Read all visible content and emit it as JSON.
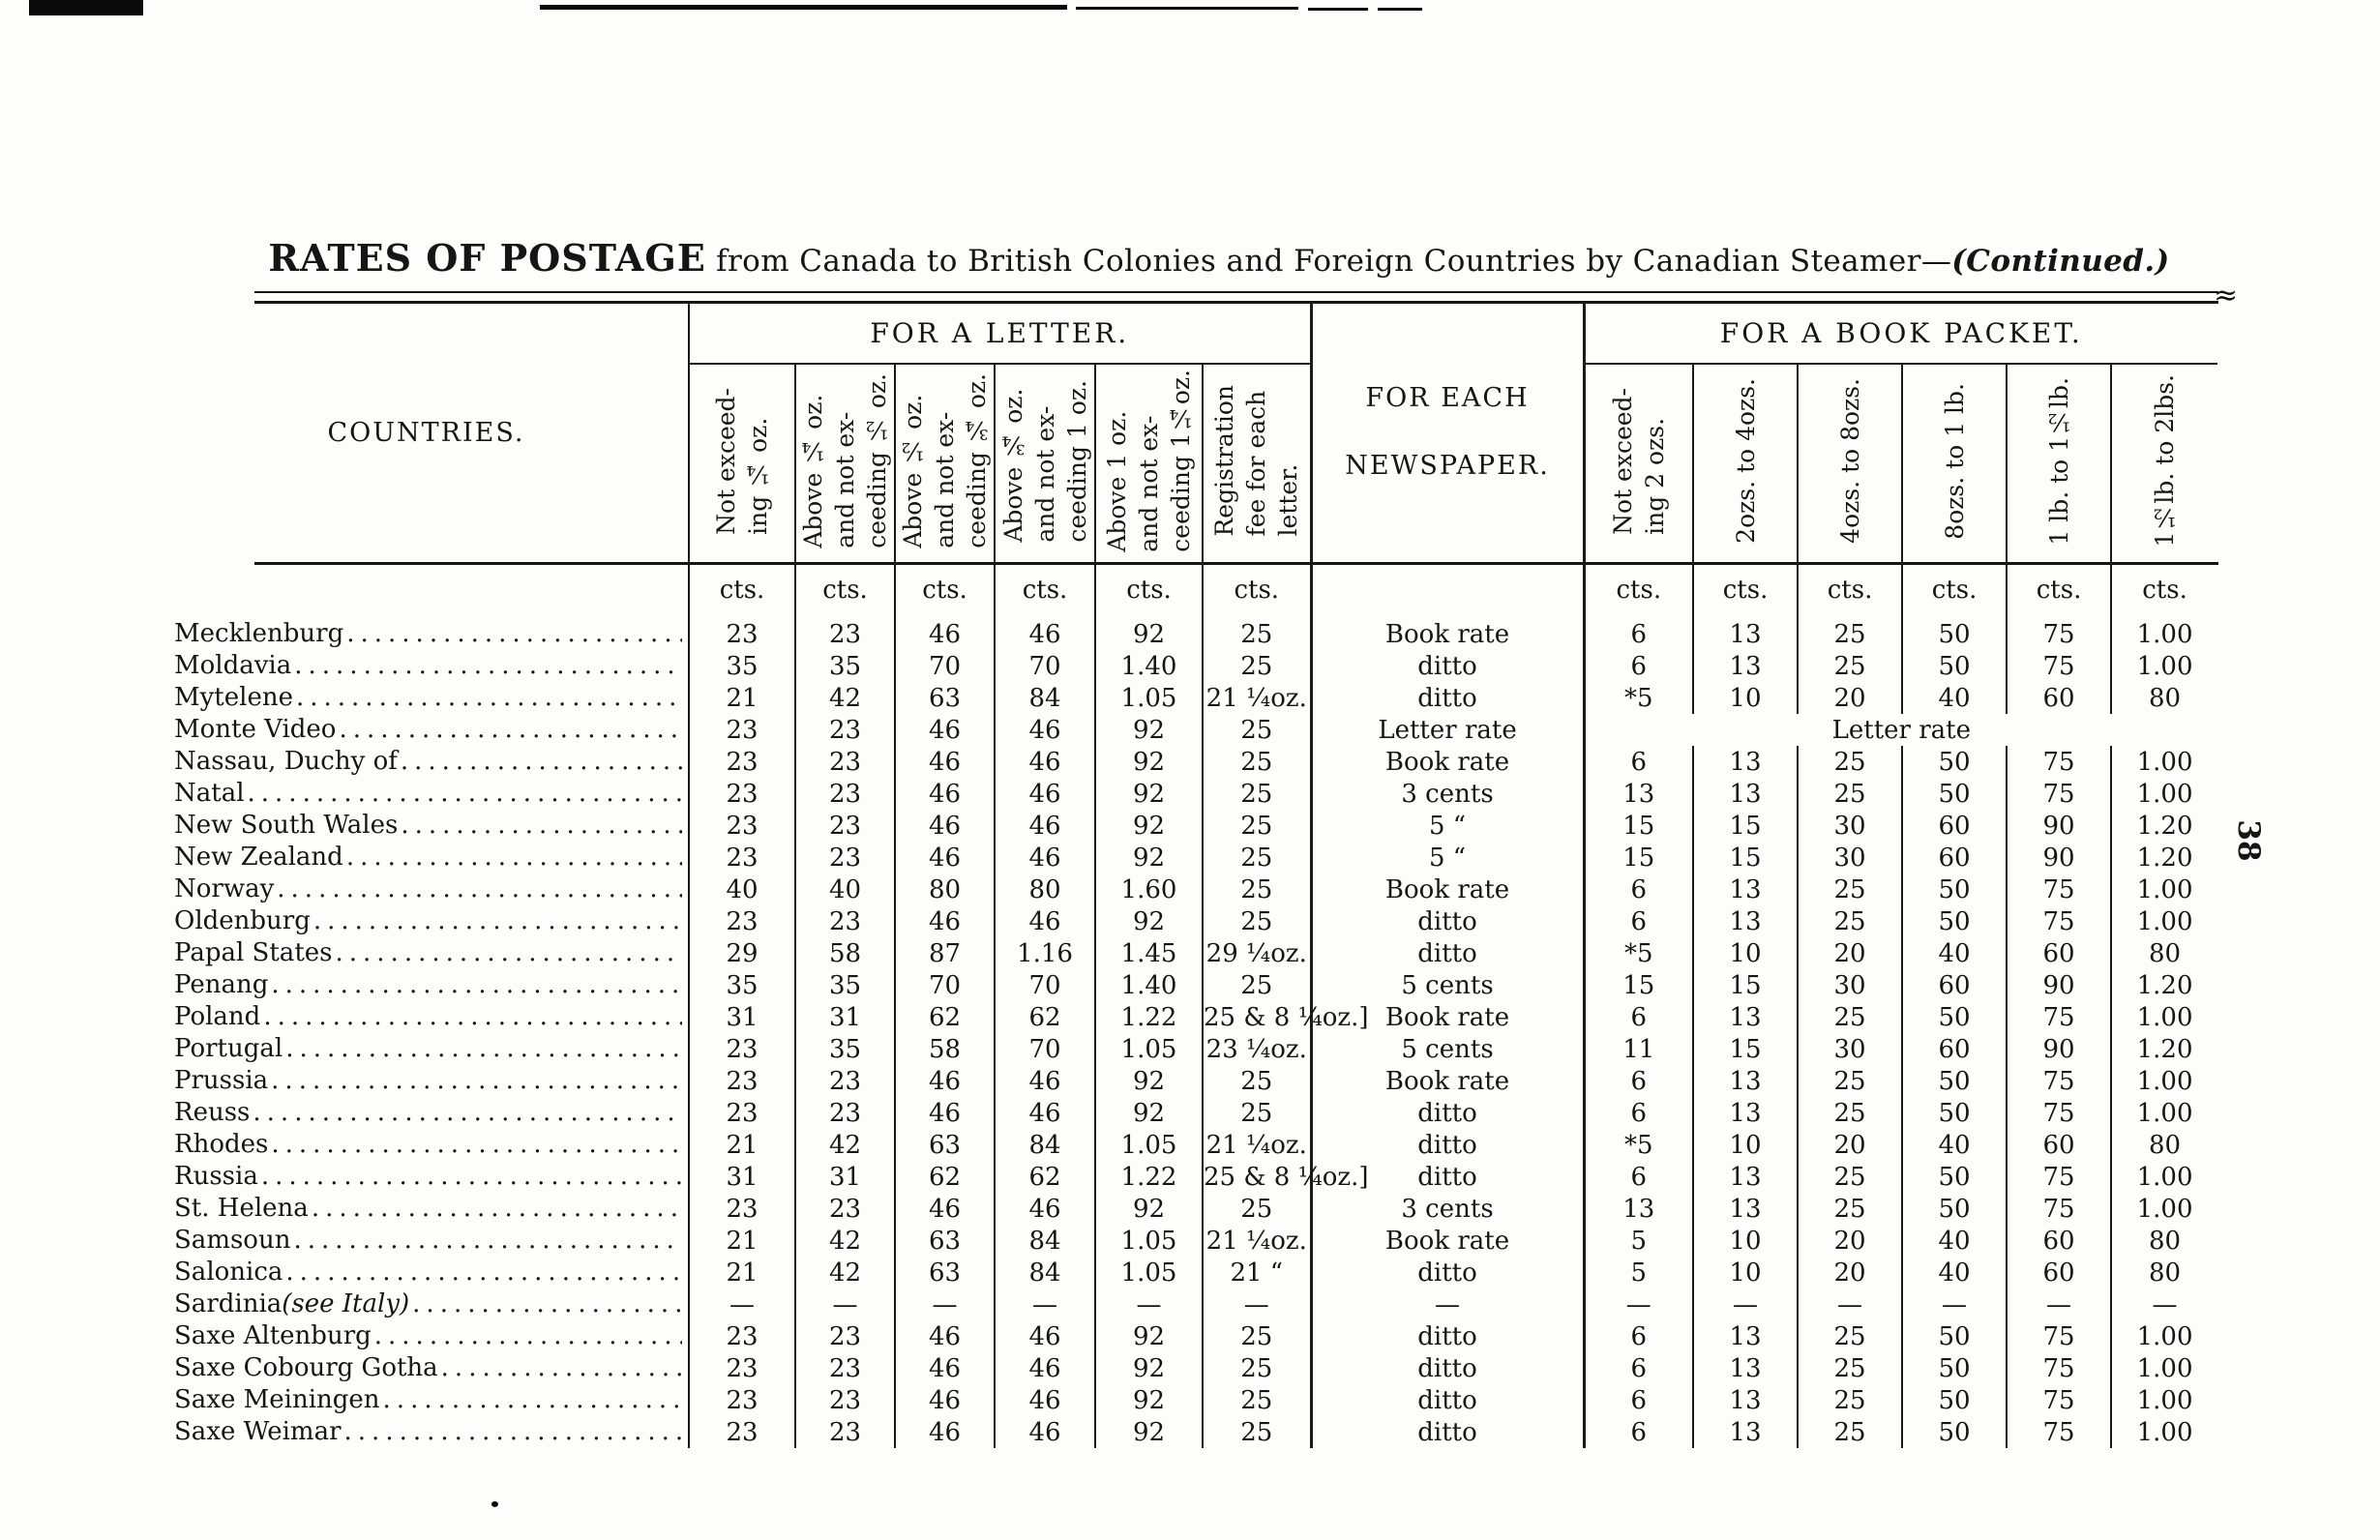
{
  "page_number": "38",
  "title": {
    "lead": "RATES OF POSTAGE",
    "body": " from Canada to British Colonies and Foreign Countries by Canadian Steamer—",
    "continued": "(Continued.)"
  },
  "table": {
    "countries_header": "COUNTRIES.",
    "sections": {
      "letter": "FOR A LETTER.",
      "newspaper_line1": "FOR EACH",
      "newspaper_line2": "NEWSPAPER.",
      "book": "FOR A BOOK PACKET."
    },
    "units": "cts.",
    "letter_columns": [
      "Not exceed-\ning ¼ oz.",
      "Above ¼ oz.\nand not ex-\nceeding ½ oz.",
      "Above ½ oz.\nand not ex-\nceeding ¾ oz.",
      "Above ¾ oz.\nand not ex-\nceeding 1 oz.",
      "Above 1 oz.\nand not ex-\nceeding 1¼oz.",
      "Registration\nfee for each\nletter."
    ],
    "book_columns": [
      "Not exceed-\ning 2 ozs.",
      "2ozs. to 4ozs.",
      "4ozs. to 8ozs.",
      "8ozs. to 1 lb.",
      "1 lb. to 1½lb.",
      "1½lb. to 2lbs."
    ],
    "rows": [
      {
        "country": "Mecklenburg",
        "letter": [
          "23",
          "23",
          "46",
          "46",
          "92",
          "25"
        ],
        "newspaper": "Book rate",
        "book": [
          "6",
          "13",
          "25",
          "50",
          "75",
          "1.00"
        ]
      },
      {
        "country": "Moldavia",
        "letter": [
          "35",
          "35",
          "70",
          "70",
          "1.40",
          "25"
        ],
        "newspaper": "ditto",
        "book": [
          "6",
          "13",
          "25",
          "50",
          "75",
          "1.00"
        ]
      },
      {
        "country": "Mytelene",
        "letter": [
          "21",
          "42",
          "63",
          "84",
          "1.05",
          "21 ¼oz."
        ],
        "newspaper": "ditto",
        "book": [
          "*5",
          "10",
          "20",
          "40",
          "60",
          "80"
        ]
      },
      {
        "country": "Monte Video",
        "letter": [
          "23",
          "23",
          "46",
          "46",
          "92",
          "25"
        ],
        "newspaper": "Letter rate",
        "book_span": "Letter rate"
      },
      {
        "country": "Nassau, Duchy of",
        "letter": [
          "23",
          "23",
          "46",
          "46",
          "92",
          "25"
        ],
        "newspaper": "Book rate",
        "book": [
          "6",
          "13",
          "25",
          "50",
          "75",
          "1.00"
        ]
      },
      {
        "country": "Natal",
        "letter": [
          "23",
          "23",
          "46",
          "46",
          "92",
          "25"
        ],
        "newspaper": "3 cents",
        "book": [
          "13",
          "13",
          "25",
          "50",
          "75",
          "1.00"
        ]
      },
      {
        "country": "New South Wales",
        "letter": [
          "23",
          "23",
          "46",
          "46",
          "92",
          "25"
        ],
        "newspaper": "5  “",
        "book": [
          "15",
          "15",
          "30",
          "60",
          "90",
          "1.20"
        ]
      },
      {
        "country": "New Zealand",
        "letter": [
          "23",
          "23",
          "46",
          "46",
          "92",
          "25"
        ],
        "newspaper": "5  “",
        "book": [
          "15",
          "15",
          "30",
          "60",
          "90",
          "1.20"
        ]
      },
      {
        "country": "Norway",
        "letter": [
          "40",
          "40",
          "80",
          "80",
          "1.60",
          "25"
        ],
        "newspaper": "Book rate",
        "book": [
          "6",
          "13",
          "25",
          "50",
          "75",
          "1.00"
        ]
      },
      {
        "country": "Oldenburg",
        "letter": [
          "23",
          "23",
          "46",
          "46",
          "92",
          "25"
        ],
        "newspaper": "ditto",
        "book": [
          "6",
          "13",
          "25",
          "50",
          "75",
          "1.00"
        ]
      },
      {
        "country": "Papal States",
        "letter": [
          "29",
          "58",
          "87",
          "1.16",
          "1.45",
          "29 ¼oz."
        ],
        "newspaper": "ditto",
        "book": [
          "*5",
          "10",
          "20",
          "40",
          "60",
          "80"
        ]
      },
      {
        "country": "Penang",
        "letter": [
          "35",
          "35",
          "70",
          "70",
          "1.40",
          "25"
        ],
        "newspaper": "5 cents",
        "book": [
          "15",
          "15",
          "30",
          "60",
          "90",
          "1.20"
        ]
      },
      {
        "country": "Poland",
        "letter": [
          "31",
          "31",
          "62",
          "62",
          "1.22",
          "25 & 8 ¼oz.]"
        ],
        "newspaper": "Book rate",
        "book": [
          "6",
          "13",
          "25",
          "50",
          "75",
          "1.00"
        ]
      },
      {
        "country": "Portugal",
        "letter": [
          "23",
          "35",
          "58",
          "70",
          "1.05",
          "23 ¼oz."
        ],
        "newspaper": "5 cents",
        "book": [
          "11",
          "15",
          "30",
          "60",
          "90",
          "1.20"
        ]
      },
      {
        "country": "Prussia",
        "letter": [
          "23",
          "23",
          "46",
          "46",
          "92",
          "25"
        ],
        "newspaper": "Book rate",
        "book": [
          "6",
          "13",
          "25",
          "50",
          "75",
          "1.00"
        ]
      },
      {
        "country": "Reuss",
        "letter": [
          "23",
          "23",
          "46",
          "46",
          "92",
          "25"
        ],
        "newspaper": "ditto",
        "book": [
          "6",
          "13",
          "25",
          "50",
          "75",
          "1.00"
        ]
      },
      {
        "country": "Rhodes",
        "letter": [
          "21",
          "42",
          "63",
          "84",
          "1.05",
          "21 ¼oz."
        ],
        "newspaper": "ditto",
        "book": [
          "*5",
          "10",
          "20",
          "40",
          "60",
          "80"
        ]
      },
      {
        "country": "Russia",
        "letter": [
          "31",
          "31",
          "62",
          "62",
          "1.22",
          "25 & 8 ¼oz.]"
        ],
        "newspaper": "ditto",
        "book": [
          "6",
          "13",
          "25",
          "50",
          "75",
          "1.00"
        ]
      },
      {
        "country": "St. Helena",
        "letter": [
          "23",
          "23",
          "46",
          "46",
          "92",
          "25"
        ],
        "newspaper": "3 cents",
        "book": [
          "13",
          "13",
          "25",
          "50",
          "75",
          "1.00"
        ]
      },
      {
        "country": "Samsoun",
        "letter": [
          "21",
          "42",
          "63",
          "84",
          "1.05",
          "21 ¼oz."
        ],
        "newspaper": "Book rate",
        "book": [
          "5",
          "10",
          "20",
          "40",
          "60",
          "80"
        ]
      },
      {
        "country": "Salonica",
        "letter": [
          "21",
          "42",
          "63",
          "84",
          "1.05",
          "21  “"
        ],
        "newspaper": "ditto",
        "book": [
          "5",
          "10",
          "20",
          "40",
          "60",
          "80"
        ]
      },
      {
        "country": "Sardinia ",
        "country_italic": "(see Italy)",
        "letter": [
          "—",
          "—",
          "—",
          "—",
          "—",
          "—"
        ],
        "newspaper": "—",
        "book": [
          "—",
          "—",
          "—",
          "—",
          "—",
          "—"
        ]
      },
      {
        "country": "Saxe Altenburg",
        "letter": [
          "23",
          "23",
          "46",
          "46",
          "92",
          "25"
        ],
        "newspaper": "ditto",
        "book": [
          "6",
          "13",
          "25",
          "50",
          "75",
          "1.00"
        ]
      },
      {
        "country": "Saxe Cobourg Gotha",
        "letter": [
          "23",
          "23",
          "46",
          "46",
          "92",
          "25"
        ],
        "newspaper": "ditto",
        "book": [
          "6",
          "13",
          "25",
          "50",
          "75",
          "1.00"
        ]
      },
      {
        "country": "Saxe Meiningen",
        "letter": [
          "23",
          "23",
          "46",
          "46",
          "92",
          "25"
        ],
        "newspaper": "ditto",
        "book": [
          "6",
          "13",
          "25",
          "50",
          "75",
          "1.00"
        ]
      },
      {
        "country": "Saxe Weimar",
        "letter": [
          "23",
          "23",
          "46",
          "46",
          "92",
          "25"
        ],
        "newspaper": "ditto",
        "book": [
          "6",
          "13",
          "25",
          "50",
          "75",
          "1.00"
        ]
      }
    ]
  }
}
